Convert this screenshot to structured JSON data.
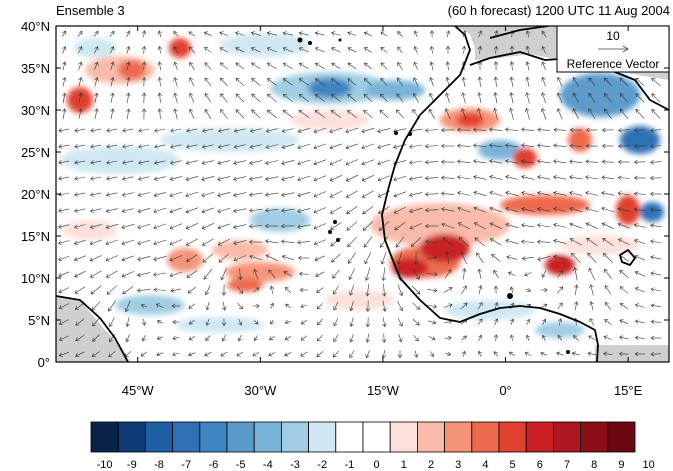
{
  "header": {
    "left_title": "Ensemble 3",
    "right_title": "(60 h forecast) 1200 UTC 11 Aug 2004"
  },
  "map": {
    "lat_ticks": [
      "40°N",
      "35°N",
      "30°N",
      "25°N",
      "20°N",
      "15°N",
      "10°N",
      "5°N",
      "0°"
    ],
    "lon_ticks": [
      "45°W",
      "30°W",
      "15°W",
      "0°",
      "15°E"
    ],
    "lat_range": [
      0,
      40
    ],
    "lon_range": [
      -55,
      20
    ],
    "land_color": "#cfcfcf",
    "reference_vector": {
      "value": "10",
      "label": "Reference Vector"
    }
  },
  "colorbar": {
    "labels": [
      "-10",
      "-9",
      "-8",
      "-7",
      "-6",
      "-5",
      "-4",
      "-3",
      "-2",
      "-1",
      "0",
      "1",
      "2",
      "3",
      "4",
      "5",
      "6",
      "7",
      "8",
      "9",
      "10"
    ],
    "colors": [
      "#08244a",
      "#0e3a75",
      "#1f5fa3",
      "#2e72b5",
      "#3f85c2",
      "#5b9bcc",
      "#7ab3d8",
      "#a0cde3",
      "#cfe8f3",
      "#ffffff",
      "#ffffff",
      "#fde0db",
      "#f9bba9",
      "#f59478",
      "#ee6a4e",
      "#e1412f",
      "#c92121",
      "#ae1720",
      "#8c0e16",
      "#6b0812"
    ]
  }
}
